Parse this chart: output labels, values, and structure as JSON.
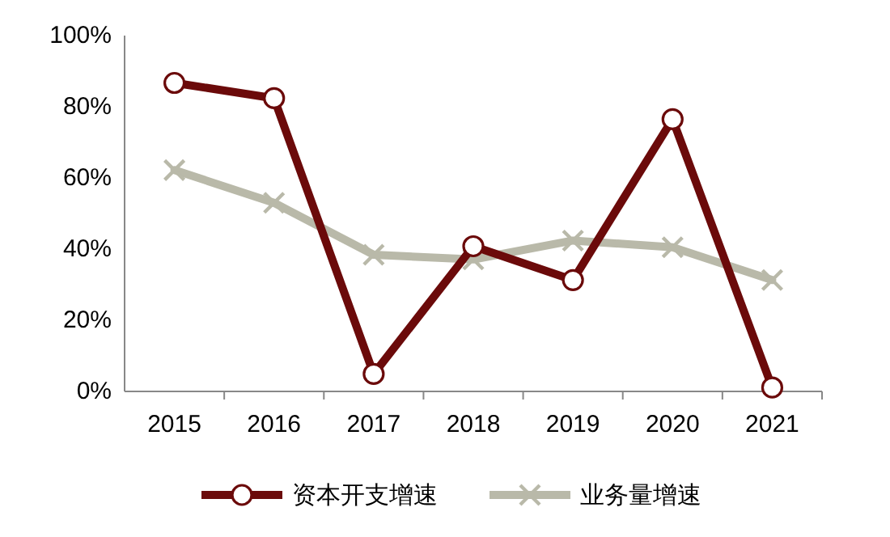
{
  "chart_data": {
    "type": "line",
    "categories": [
      "2015",
      "2016",
      "2017",
      "2018",
      "2019",
      "2020",
      "2021"
    ],
    "series": [
      {
        "name": "资本开支增速",
        "color": "#6b0a0a",
        "marker": "circle",
        "values": [
          86.7,
          82.4,
          4.9,
          40.8,
          31.3,
          76.5,
          1.1
        ]
      },
      {
        "name": "业务量增速",
        "color": "#b9b9a9",
        "marker": "cross",
        "values": [
          62.2,
          53,
          38.4,
          37.1,
          42.4,
          40.5,
          31.3
        ]
      }
    ],
    "ylim": [
      0,
      100
    ],
    "yticks": [
      {
        "value": 0,
        "label": "0%"
      },
      {
        "value": 20,
        "label": "20%"
      },
      {
        "value": 40,
        "label": "40%"
      },
      {
        "value": 60,
        "label": "60%"
      },
      {
        "value": 80,
        "label": "80%"
      },
      {
        "value": 100,
        "label": "100%"
      }
    ],
    "grid": false,
    "legend": "bottom"
  }
}
